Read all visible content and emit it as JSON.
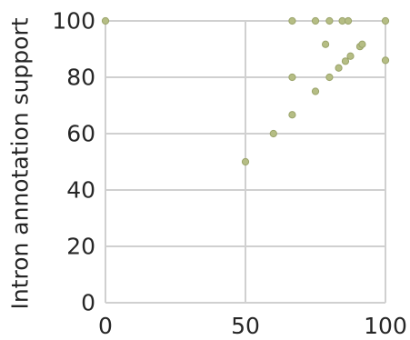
{
  "chart_data": {
    "type": "scatter",
    "title": "",
    "xlabel": "",
    "ylabel": "Intron annotation support",
    "xlim": [
      0,
      100
    ],
    "ylim": [
      0,
      100
    ],
    "x_ticks": [
      0,
      50,
      100
    ],
    "y_ticks": [
      0,
      20,
      40,
      60,
      80,
      100
    ],
    "grid": true,
    "legend": "none",
    "point_color": "#b5bd84",
    "point_edge_color": "#9aa36a",
    "grid_color": "#d0d0d0",
    "series": [
      {
        "points": [
          {
            "x": 0,
            "y": 100
          },
          {
            "x": 50,
            "y": 50
          },
          {
            "x": 60,
            "y": 60
          },
          {
            "x": 66.7,
            "y": 66.7
          },
          {
            "x": 66.7,
            "y": 80
          },
          {
            "x": 66.7,
            "y": 100
          },
          {
            "x": 75,
            "y": 75
          },
          {
            "x": 75,
            "y": 100
          },
          {
            "x": 78.6,
            "y": 91.7
          },
          {
            "x": 80,
            "y": 80
          },
          {
            "x": 80,
            "y": 100
          },
          {
            "x": 83.3,
            "y": 83.3
          },
          {
            "x": 84.6,
            "y": 100
          },
          {
            "x": 85.7,
            "y": 85.7
          },
          {
            "x": 86.7,
            "y": 100
          },
          {
            "x": 87.5,
            "y": 87.5
          },
          {
            "x": 90.9,
            "y": 90.9
          },
          {
            "x": 91.7,
            "y": 91.7
          },
          {
            "x": 100,
            "y": 86
          },
          {
            "x": 100,
            "y": 100
          }
        ]
      }
    ]
  }
}
